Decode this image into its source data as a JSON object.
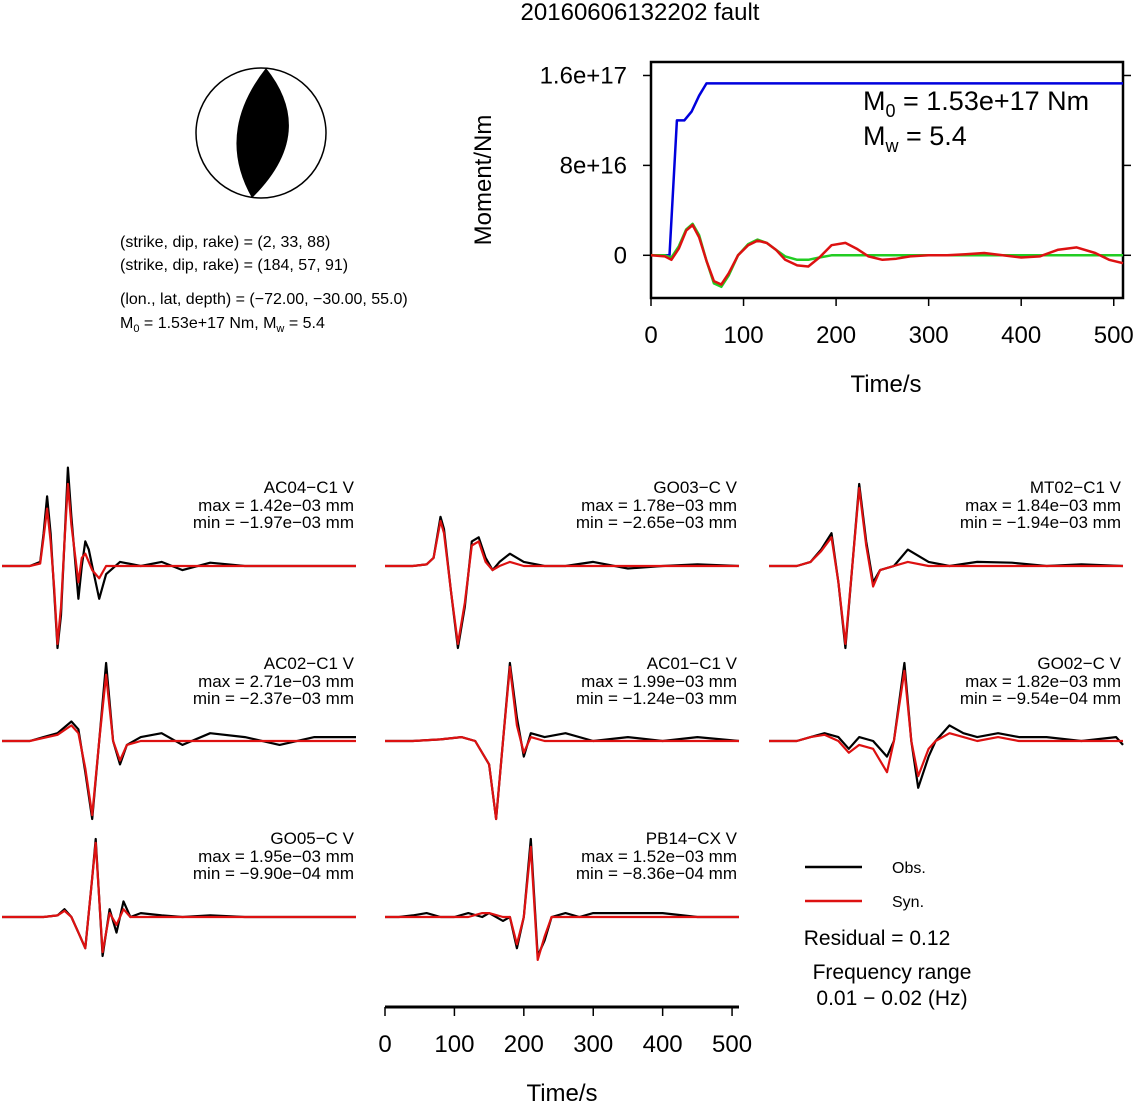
{
  "title": "20160606132202 fault",
  "mechanism": {
    "nodal_plane_1": "(strike, dip, rake) = (2, 33, 88)",
    "nodal_plane_2": "(strike, dip, rake) = (184, 57, 91)",
    "location": "(lon., lat, depth) = (−72.00, −30.00, 55.0)",
    "m0_prefix": "M",
    "m0_sub": "0",
    "m0_mid": " = 1.53e+17 Nm, M",
    "mw_sub": "w",
    "mw_tail": " = 5.4"
  },
  "chart_data": [
    {
      "type": "line",
      "name": "moment-rate",
      "xlabel": "Time/s",
      "ylabel": "Moment/Nm",
      "xlim": [
        0,
        510
      ],
      "ylim": [
        -3.8e+16,
        1.72e+17
      ],
      "x_ticks": [
        0,
        100,
        200,
        300,
        400,
        500
      ],
      "x_tick_labels": [
        "0",
        "100",
        "200",
        "300",
        "400",
        "500"
      ],
      "y_ticks": [
        0,
        8e+16,
        1.6e+17
      ],
      "y_tick_labels": [
        "0",
        "8e+16",
        "1.6e+17"
      ],
      "annotation": {
        "m0_prefix": "M",
        "m0_sub": "0",
        "m0_tail": " = 1.53e+17 Nm",
        "mw_prefix": "M",
        "mw_sub": "w",
        "mw_tail": " = 5.4"
      },
      "series": [
        {
          "color": "#0000dd",
          "x": [
            0,
            20,
            28,
            36,
            44,
            52,
            60,
            510
          ],
          "y": [
            0,
            0,
            1.2e+17,
            1.2e+17,
            1.28e+17,
            1.42e+17,
            1.53e+17,
            1.53e+17
          ]
        },
        {
          "color": "#22cc22",
          "x": [
            0,
            15,
            22,
            30,
            38,
            45,
            52,
            60,
            68,
            76,
            84,
            94,
            105,
            115,
            125,
            135,
            145,
            158,
            170,
            182,
            195,
            210,
            230,
            260,
            300,
            350,
            400,
            450,
            510
          ],
          "y": [
            0,
            0,
            -2000000000000000.0,
            8000000000000000.0,
            2.3e+16,
            2.8e+16,
            1.8e+16,
            -5000000000000000.0,
            -2.5e+16,
            -2.8e+16,
            -1.8e+16,
            0,
            1e+16,
            1.4e+16,
            1.1e+16,
            5000000000000000.0,
            -1000000000000000.0,
            -4000000000000000.0,
            -4000000000000000.0,
            -2000000000000000.0,
            0,
            0,
            0,
            0,
            0,
            0,
            0,
            0,
            0
          ]
        },
        {
          "color": "#dd1111",
          "x": [
            0,
            15,
            22,
            30,
            38,
            45,
            52,
            60,
            68,
            76,
            84,
            94,
            105,
            115,
            125,
            135,
            145,
            158,
            170,
            182,
            195,
            210,
            222,
            235,
            250,
            265,
            280,
            300,
            320,
            340,
            360,
            380,
            400,
            420,
            440,
            460,
            480,
            495,
            510
          ],
          "y": [
            0,
            -1000000000000000.0,
            -4000000000000000.0,
            6000000000000000.0,
            2.2e+16,
            2.7e+16,
            1.6e+16,
            -5000000000000000.0,
            -2.3e+16,
            -2.6e+16,
            -1.6e+16,
            0,
            9000000000000000.0,
            1.3e+16,
            1.1e+16,
            5000000000000000.0,
            -4000000000000000.0,
            -9000000000000000.0,
            -1e+16,
            -2000000000000000.0,
            9000000000000000.0,
            1.1e+16,
            6000000000000000.0,
            -1000000000000000.0,
            -4000000000000000.0,
            -3000000000000000.0,
            -1000000000000000.0,
            0,
            0,
            1000000000000000.0,
            2000000000000000.0,
            0,
            -2000000000000000.0,
            -1000000000000000.0,
            5000000000000000.0,
            7000000000000000.0,
            2000000000000000.0,
            -4000000000000000.0,
            -7000000000000000.0
          ]
        }
      ]
    },
    {
      "type": "line",
      "name": "waveform-fits",
      "xlabel": "Time/s",
      "x_ticks": [
        0,
        100,
        200,
        300,
        400,
        500
      ],
      "x_tick_labels": [
        "0",
        "100",
        "200",
        "300",
        "400",
        "500"
      ],
      "xlim": [
        0,
        510
      ],
      "legend": {
        "placement": "bottom-right",
        "entries": [
          {
            "label": "Obs.",
            "color": "#000000"
          },
          {
            "label": "Syn.",
            "color": "#dd1111"
          }
        ]
      },
      "residual": "Residual = 0.12",
      "freq_label": "Frequency range",
      "freq_value": "0.01 − 0.02 (Hz)",
      "stations": [
        {
          "name": "AC04−C1 V",
          "max": "max = 1.42e−03 mm",
          "min": "min = −1.97e−03 mm",
          "x": [
            0,
            20,
            40,
            55,
            60,
            65,
            70,
            75,
            80,
            85,
            90,
            95,
            100,
            110,
            115,
            120,
            125,
            130,
            140,
            150,
            170,
            200,
            230,
            260,
            300,
            350,
            400,
            450,
            510
          ],
          "obs": [
            0,
            0,
            0,
            0.05,
            0.4,
            0.85,
            0.4,
            -0.3,
            -1.0,
            -0.6,
            0.3,
            1.2,
            0.6,
            -0.4,
            0.0,
            0.3,
            0.2,
            0.0,
            -0.4,
            -0.1,
            0.05,
            0,
            0.05,
            -0.05,
            0.04,
            0,
            0,
            0,
            0
          ],
          "syn": [
            0,
            0,
            0,
            0.03,
            0.35,
            0.7,
            0.3,
            -0.25,
            -0.95,
            -0.5,
            0.3,
            1.0,
            0.5,
            -0.2,
            0.1,
            0.15,
            0.05,
            -0.05,
            -0.15,
            0,
            0,
            0,
            0,
            0,
            0,
            0,
            0,
            0,
            0
          ]
        },
        {
          "name": "GO03−C V",
          "max": "max = 1.78e−03 mm",
          "min": "min = −2.65e−03 mm",
          "x": [
            0,
            20,
            40,
            60,
            70,
            80,
            85,
            95,
            105,
            115,
            125,
            135,
            145,
            155,
            165,
            180,
            200,
            230,
            260,
            300,
            350,
            400,
            450,
            510
          ],
          "obs": [
            0,
            0,
            0,
            0.02,
            0.1,
            0.6,
            0.45,
            -0.3,
            -1.0,
            -0.5,
            0.3,
            0.35,
            0.1,
            -0.05,
            0.05,
            0.15,
            0.05,
            0,
            0,
            0.05,
            -0.03,
            0,
            0.02,
            0
          ],
          "syn": [
            0,
            0,
            0,
            0.02,
            0.1,
            0.55,
            0.4,
            -0.3,
            -0.95,
            -0.45,
            0.25,
            0.3,
            0.05,
            -0.05,
            0,
            0.05,
            0,
            0,
            0,
            0,
            0,
            0,
            0,
            0
          ]
        },
        {
          "name": "MT02−C1 V",
          "max": "max = 1.84e−03 mm",
          "min": "min = −1.94e−03 mm",
          "x": [
            0,
            20,
            40,
            60,
            75,
            90,
            100,
            110,
            120,
            130,
            140,
            150,
            160,
            180,
            200,
            230,
            260,
            300,
            350,
            400,
            450,
            510
          ],
          "obs": [
            0,
            0,
            0,
            0.05,
            0.2,
            0.4,
            -0.2,
            -1.0,
            0.0,
            1.0,
            0.3,
            -0.2,
            -0.05,
            0.0,
            0.2,
            0.05,
            0,
            0.05,
            0.04,
            0,
            0.02,
            0
          ],
          "syn": [
            0,
            0,
            0,
            0.05,
            0.18,
            0.35,
            -0.2,
            -0.95,
            0.0,
            0.95,
            0.25,
            -0.25,
            -0.05,
            0,
            0.05,
            0,
            0,
            0,
            0,
            0,
            0,
            0
          ]
        },
        {
          "name": "AC02−C1 V",
          "max": "max = 2.71e−03 mm",
          "min": "min = −2.37e−03 mm",
          "x": [
            0,
            20,
            40,
            60,
            80,
            100,
            110,
            120,
            130,
            140,
            150,
            160,
            170,
            180,
            200,
            230,
            260,
            300,
            350,
            400,
            450,
            510
          ],
          "obs": [
            0,
            0,
            0,
            0.05,
            0.1,
            0.25,
            0.15,
            -0.4,
            -1.0,
            0.0,
            1.0,
            0.0,
            -0.3,
            -0.05,
            0.05,
            0.1,
            -0.05,
            0.1,
            0.05,
            -0.05,
            0.05,
            0.05
          ],
          "syn": [
            0,
            0,
            0,
            0.04,
            0.08,
            0.2,
            0.1,
            -0.35,
            -0.95,
            0.0,
            0.85,
            0.0,
            -0.25,
            -0.05,
            0,
            0,
            0,
            0,
            0,
            0,
            0,
            0
          ]
        },
        {
          "name": "AC01−C1 V",
          "max": "max = 1.99e−03 mm",
          "min": "min = −1.24e−03 mm",
          "x": [
            0,
            20,
            40,
            80,
            110,
            130,
            150,
            160,
            170,
            180,
            190,
            200,
            210,
            230,
            260,
            300,
            350,
            400,
            450,
            510
          ],
          "obs": [
            0,
            0,
            0,
            0.02,
            0.05,
            0.0,
            -0.3,
            -1.0,
            0.0,
            1.0,
            0.3,
            -0.2,
            0.1,
            0.05,
            0.1,
            0.0,
            0.05,
            0,
            0.05,
            0
          ],
          "syn": [
            0,
            0,
            0,
            0.02,
            0.05,
            0.0,
            -0.3,
            -1.0,
            0.0,
            0.95,
            0.2,
            -0.15,
            0.05,
            0,
            0,
            0,
            0,
            0,
            0,
            0
          ]
        },
        {
          "name": "GO02−C V",
          "max": "max = 1.82e−03 mm",
          "min": "min = −9.54e−04 mm",
          "x": [
            0,
            20,
            40,
            60,
            80,
            100,
            115,
            130,
            150,
            170,
            180,
            195,
            205,
            215,
            230,
            240,
            260,
            280,
            300,
            330,
            360,
            400,
            450,
            500,
            510
          ],
          "obs": [
            0,
            0,
            0,
            0.05,
            0.1,
            0.05,
            -0.1,
            0.05,
            0.0,
            -0.2,
            0.0,
            1.0,
            0.0,
            -0.6,
            -0.2,
            0.0,
            0.2,
            0.1,
            0.05,
            0.1,
            0.05,
            0.05,
            0.0,
            0.05,
            -0.05
          ],
          "syn": [
            0,
            0,
            0,
            0.05,
            0.08,
            0.0,
            -0.15,
            -0.05,
            -0.1,
            -0.4,
            0.0,
            0.9,
            0.0,
            -0.45,
            -0.1,
            0.0,
            0.1,
            0.05,
            0.0,
            0.05,
            0.0,
            0.0,
            0.0,
            0.0,
            0
          ]
        },
        {
          "name": "GO05−C V",
          "max": "max = 1.95e−03 mm",
          "min": "min = −9.90e−04 mm",
          "x": [
            0,
            20,
            40,
            60,
            80,
            90,
            100,
            110,
            120,
            130,
            135,
            145,
            155,
            165,
            175,
            185,
            200,
            230,
            260,
            300,
            350,
            400,
            450,
            510
          ],
          "obs": [
            0,
            0,
            0,
            0,
            0.02,
            0.1,
            0.0,
            -0.2,
            -0.4,
            0.5,
            1.0,
            -0.5,
            0.1,
            -0.2,
            0.2,
            0.0,
            0.05,
            0.02,
            0,
            0.02,
            0.0,
            0,
            0,
            0
          ],
          "syn": [
            0,
            0,
            0,
            0,
            0.02,
            0.08,
            0.0,
            -0.2,
            -0.4,
            0.5,
            0.95,
            -0.45,
            0.05,
            -0.1,
            0.1,
            0.0,
            0.0,
            0,
            0,
            0,
            0,
            0,
            0,
            0
          ]
        },
        {
          "name": "PB14−CX V",
          "max": "max = 1.52e−03 mm",
          "min": "min = −8.36e−04 mm",
          "x": [
            0,
            20,
            40,
            60,
            80,
            100,
            120,
            140,
            150,
            170,
            180,
            190,
            200,
            210,
            220,
            230,
            240,
            260,
            280,
            300,
            350,
            400,
            450,
            510
          ],
          "obs": [
            0,
            0,
            0.02,
            0.05,
            0.0,
            0.0,
            0.05,
            0.0,
            0.05,
            -0.05,
            0.0,
            -0.4,
            0.0,
            1.0,
            -0.5,
            -0.3,
            0.0,
            0.05,
            0.0,
            0.05,
            0.05,
            0.05,
            0.0,
            0
          ],
          "syn": [
            0,
            0,
            0.0,
            0.0,
            0.0,
            0.0,
            0.0,
            0.05,
            0.05,
            0.0,
            0.0,
            -0.35,
            0.0,
            0.9,
            -0.55,
            -0.25,
            0.0,
            0.0,
            0.0,
            0.0,
            0.0,
            0.0,
            0.0,
            0
          ]
        }
      ]
    }
  ]
}
